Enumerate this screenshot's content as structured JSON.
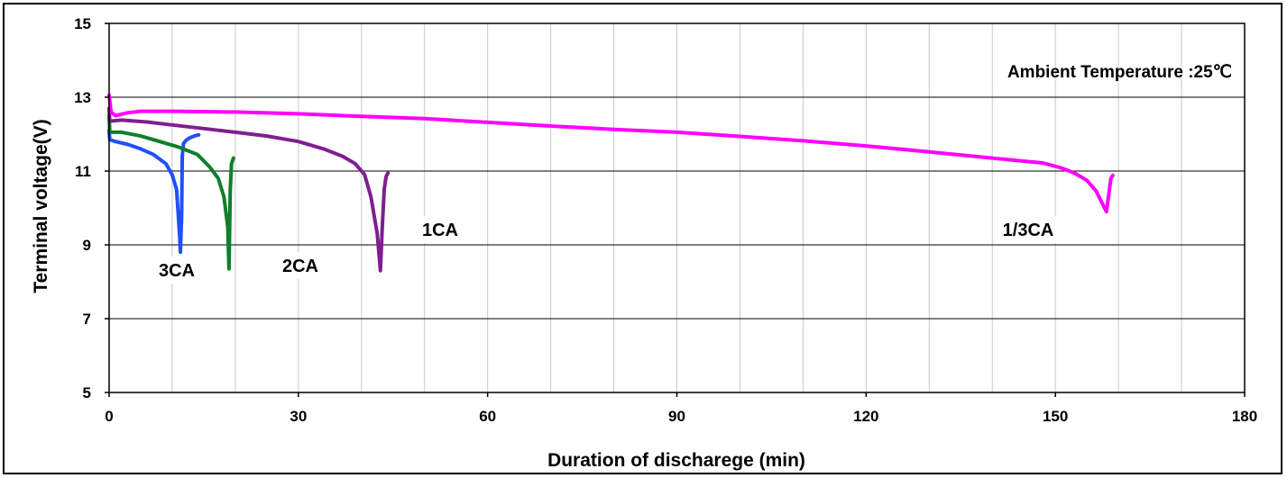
{
  "chart_data": {
    "type": "line",
    "title": "",
    "xlabel": "Duration of discharege (min)",
    "ylabel": "Terminal voltage(V)",
    "xlim": [
      0,
      180
    ],
    "ylim": [
      5,
      15
    ],
    "x_ticks": [
      "0",
      "30",
      "60",
      "90",
      "120",
      "150",
      "180"
    ],
    "y_ticks": [
      "5",
      "7",
      "9",
      "11",
      "13",
      "15"
    ],
    "grid": "both",
    "annotation": "Ambient Temperature :25℃",
    "series": [
      {
        "name": "3CA",
        "color": "#1f4fff",
        "x": [
          0,
          0.1,
          1,
          3,
          5,
          7,
          9,
          10,
          10.7,
          11.2,
          11.3,
          11.5,
          11.6,
          11.8,
          12.3,
          12.8,
          13.5,
          14.2
        ],
        "y": [
          12.1,
          11.85,
          11.8,
          11.72,
          11.6,
          11.45,
          11.2,
          10.9,
          10.5,
          9.2,
          8.8,
          9.8,
          11.4,
          11.75,
          11.85,
          11.9,
          11.95,
          11.98
        ]
      },
      {
        "name": "2CA",
        "color": "#0f7f2a",
        "x": [
          0,
          0.1,
          2,
          5,
          8,
          11,
          14,
          16,
          17.3,
          18.2,
          18.8,
          19.0,
          19.2,
          19.4,
          19.7
        ],
        "y": [
          12.5,
          12.05,
          12.05,
          11.95,
          11.8,
          11.65,
          11.45,
          11.1,
          10.8,
          10.3,
          9.5,
          8.35,
          10.5,
          11.2,
          11.35
        ]
      },
      {
        "name": "1CA",
        "color": "#7f1f8f",
        "x": [
          0,
          0.1,
          2,
          6,
          10,
          15,
          20,
          25,
          30,
          34,
          37,
          39,
          40.5,
          41.5,
          42.5,
          43.0,
          43.3,
          43.6,
          43.9,
          44.2
        ],
        "y": [
          12.7,
          12.35,
          12.38,
          12.33,
          12.25,
          12.15,
          12.05,
          11.95,
          11.8,
          11.6,
          11.4,
          11.2,
          10.9,
          10.3,
          9.3,
          8.3,
          9.5,
          10.5,
          10.85,
          10.95
        ]
      },
      {
        "name": "1/3CA",
        "color": "#ff00ff",
        "x": [
          0,
          0.3,
          1,
          3,
          5,
          10,
          20,
          30,
          40,
          50,
          60,
          70,
          80,
          90,
          100,
          110,
          120,
          130,
          140,
          148,
          151,
          153,
          155,
          156.5,
          157.5,
          158.1,
          158.5,
          158.8,
          159.1
        ],
        "y": [
          13.05,
          12.6,
          12.5,
          12.58,
          12.62,
          12.62,
          12.6,
          12.55,
          12.48,
          12.42,
          12.32,
          12.22,
          12.13,
          12.05,
          11.94,
          11.82,
          11.68,
          11.52,
          11.35,
          11.22,
          11.08,
          10.95,
          10.75,
          10.45,
          10.1,
          9.9,
          10.4,
          10.8,
          10.88
        ]
      }
    ]
  }
}
